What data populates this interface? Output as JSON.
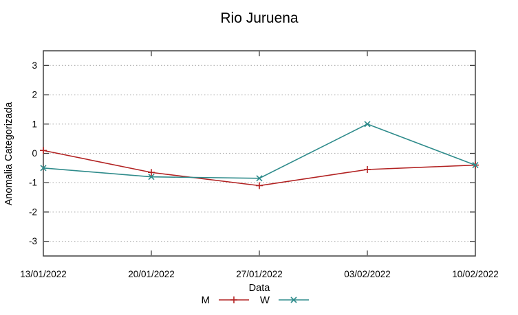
{
  "figure": {
    "background": "#ffffff",
    "axis_color": "#404040",
    "grid_color": "#b5b5b5",
    "text_color": "#000000"
  },
  "chart_data": {
    "type": "line",
    "title": "Rio Juruena",
    "xlabel": "Data",
    "ylabel": "Anomalia Categorizada",
    "categories": [
      "13/01/2022",
      "20/01/2022",
      "27/01/2022",
      "03/02/2022",
      "10/02/2022"
    ],
    "series": [
      {
        "name": "M",
        "color": "#b22222",
        "marker": "plus",
        "values": [
          0.1,
          -0.65,
          -1.1,
          -0.55,
          -0.4
        ]
      },
      {
        "name": "W",
        "color": "#2e8b8b",
        "marker": "cross",
        "values": [
          -0.5,
          -0.8,
          -0.85,
          1.0,
          -0.4
        ]
      }
    ],
    "ylim": [
      -3.5,
      3.5
    ],
    "yticks": [
      -3,
      -2,
      -1,
      0,
      1,
      2,
      3
    ],
    "grid": "horizontal-dotted",
    "legend_position": "bottom-center"
  }
}
